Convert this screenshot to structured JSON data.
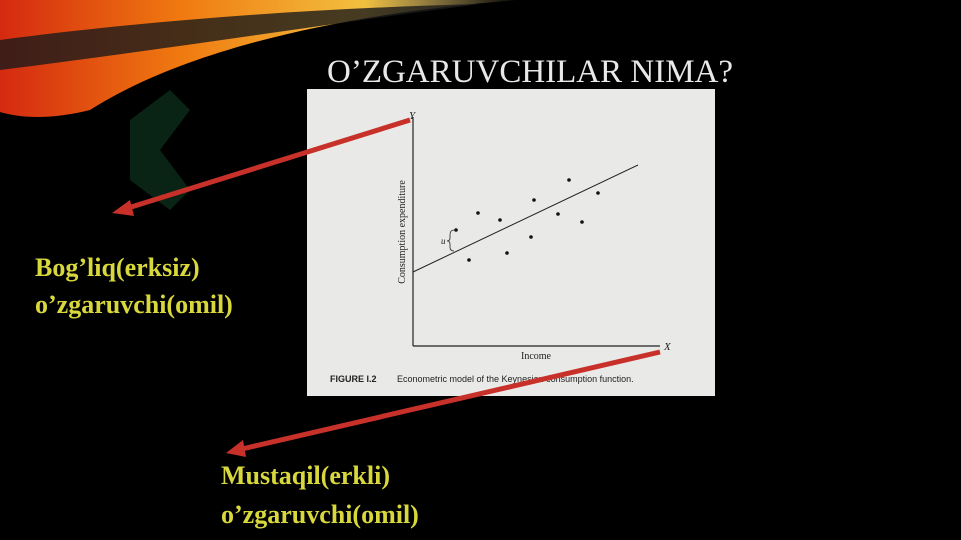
{
  "title": "O’ZGARUVCHILAR NIMA?",
  "labels": {
    "dependent": [
      "Bog’liq(erksiz)",
      "o’zgaruvchi(omil)"
    ],
    "independent": [
      "Mustaqil(erkli)",
      "o’zgaruvchi(omil)"
    ]
  },
  "figure": {
    "y_axis": "Y",
    "x_axis": "X",
    "y_label": "Consumption expenditure",
    "x_label": "Income",
    "residual": "u",
    "caption_number": "FIGURE I.2",
    "caption": "Econometric model of the Keynesian consumption function."
  }
}
